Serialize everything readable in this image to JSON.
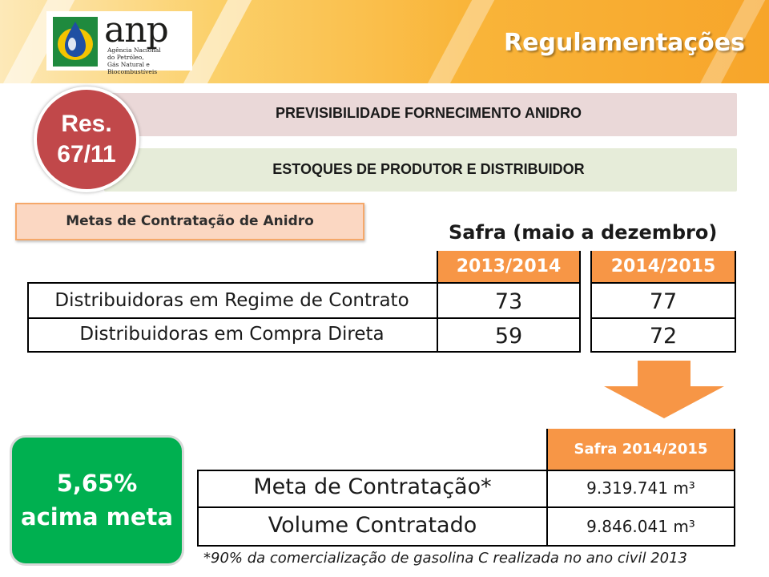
{
  "header": {
    "logo": {
      "wordmark": "anp",
      "subtitle_lines": [
        "Agência Nacional",
        "do Petróleo,",
        "Gás Natural e Biocombustíveis"
      ]
    },
    "title": "Regulamentações"
  },
  "resolution": {
    "line1": "Res.",
    "line2": "67/11",
    "color": "#c1484a"
  },
  "topics": [
    {
      "label": "PREVISIBILIDADE FORNECIMENTO ANIDRO",
      "color": "#ead8d8"
    },
    {
      "label": "ESTOQUES DE PRODUTOR E DISTRIBUIDOR",
      "color": "#e6ecd9"
    }
  ],
  "metas_title": "Metas de Contratação de Anidro",
  "safra_table": {
    "title": "Safra (maio a dezembro)",
    "columns": [
      "2013/2014",
      "2014/2015"
    ],
    "rows": [
      {
        "label": "Distribuidoras em Regime de Contrato",
        "values": [
          "73",
          "77"
        ]
      },
      {
        "label": "Distribuidoras em Compra Direta",
        "values": [
          "59",
          "72"
        ]
      }
    ],
    "header_color": "#f79646"
  },
  "arrow": {
    "icon": "down-arrow-icon",
    "color": "#f79646"
  },
  "result_badge": {
    "line1": "5,65%",
    "line2": "acima meta",
    "color": "#00b050"
  },
  "contract_table": {
    "column": "Safra 2014/2015",
    "rows": [
      {
        "label": "Meta de Contratação*",
        "value": "9.319.741 m³"
      },
      {
        "label": "Volume Contratado",
        "value": "9.846.041 m³"
      }
    ]
  },
  "footnote": "*90% da comercialização de gasolina C realizada no ano civil 2013"
}
